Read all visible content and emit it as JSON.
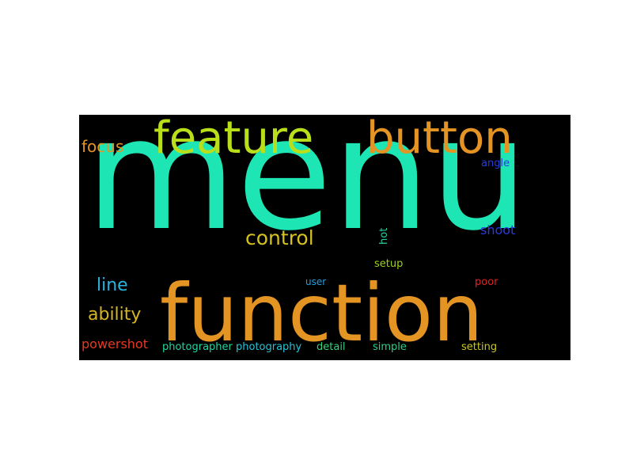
{
  "words": {
    "menu": {
      "text": "menu",
      "color": "#1de6b4"
    },
    "function": {
      "text": "function",
      "color": "#e39423"
    },
    "feature": {
      "text": "feature",
      "color": "#b9df1b"
    },
    "button": {
      "text": "button",
      "color": "#e39423"
    },
    "focus": {
      "text": "focus",
      "color": "#e39423"
    },
    "control": {
      "text": "control",
      "color": "#d6c21f"
    },
    "line": {
      "text": "line",
      "color": "#2ab4e0"
    },
    "ability": {
      "text": "ability",
      "color": "#d6b51f"
    },
    "powershot": {
      "text": "powershot",
      "color": "#e53a22"
    },
    "photographer": {
      "text": "photographer",
      "color": "#1fd6a2"
    },
    "photography": {
      "text": "photography",
      "color": "#23c3d8"
    },
    "detail": {
      "text": "detail",
      "color": "#34d07a"
    },
    "simple": {
      "text": "simple",
      "color": "#2ed089"
    },
    "setting": {
      "text": "setting",
      "color": "#c9c620"
    },
    "angle": {
      "text": "angle",
      "color": "#2a3ae0"
    },
    "shoot": {
      "text": "shoot",
      "color": "#2a3ae0"
    },
    "hot": {
      "text": "hot",
      "color": "#2ad0a0"
    },
    "setup": {
      "text": "setup",
      "color": "#9bd11d"
    },
    "user": {
      "text": "user",
      "color": "#2a9ee0"
    },
    "poor": {
      "text": "poor",
      "color": "#e0221f"
    }
  }
}
